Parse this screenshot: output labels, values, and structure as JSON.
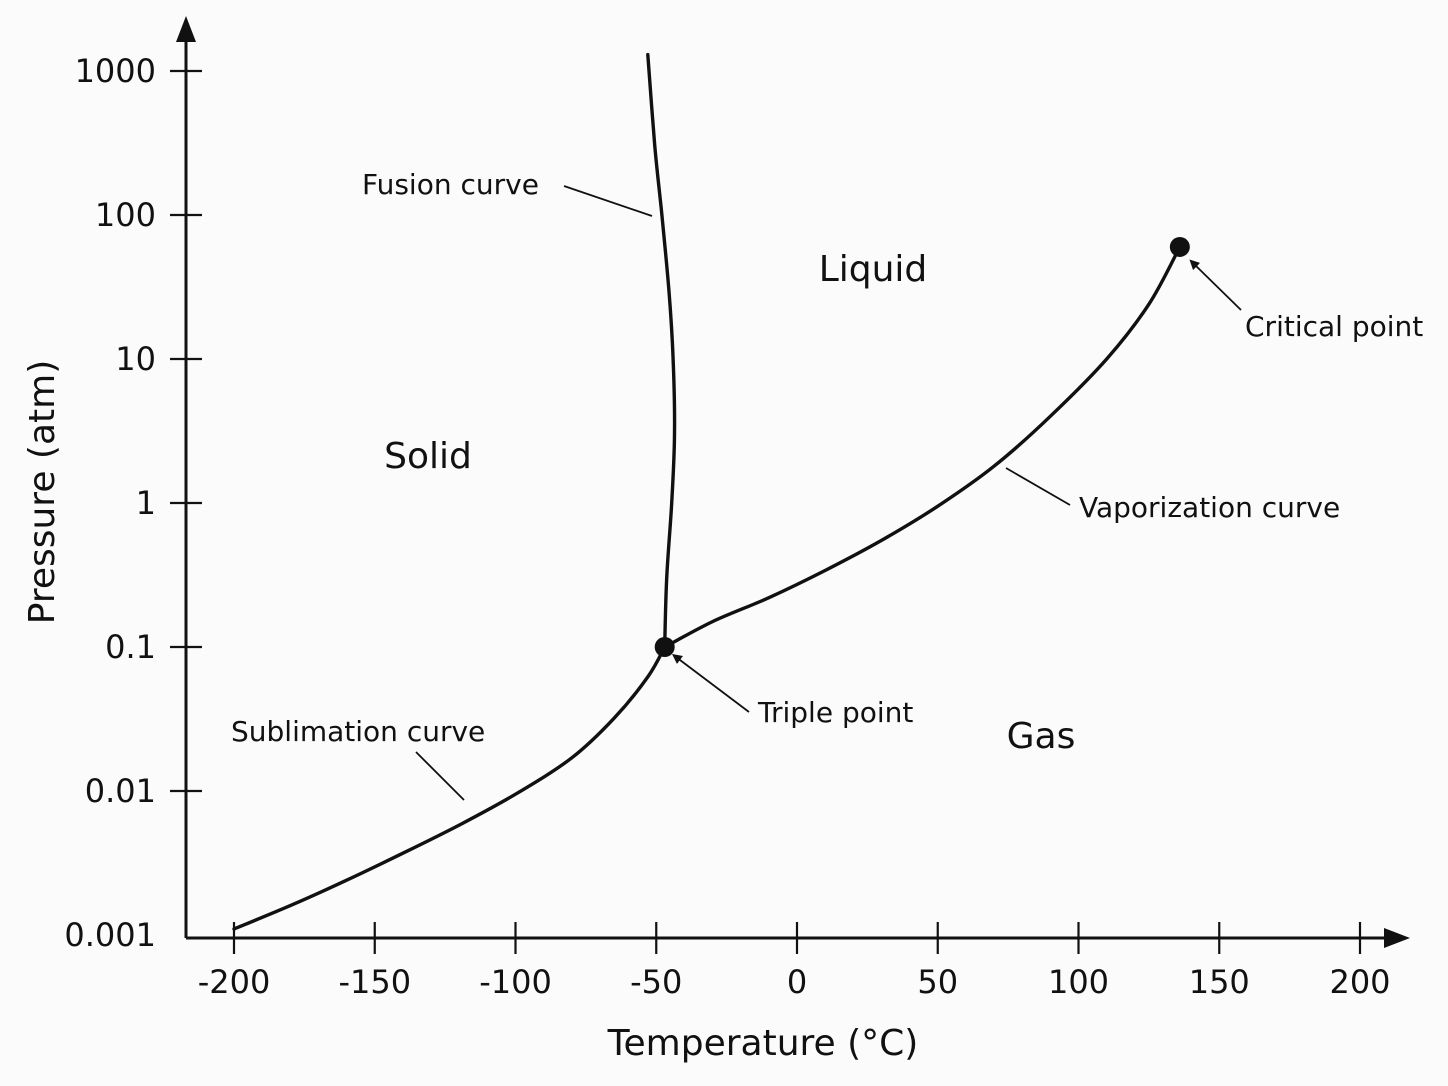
{
  "chart_data": {
    "type": "line",
    "title": "",
    "xlabel": "Temperature (°C)",
    "ylabel": "Pressure (atm)",
    "xlim": [
      -220,
      215
    ],
    "ylim": [
      0.001,
      1000
    ],
    "yscale": "log",
    "grid": false,
    "xticks": [
      -200,
      -150,
      -100,
      -50,
      0,
      50,
      100,
      150,
      200
    ],
    "xtick_labels": [
      "-200",
      "-150",
      "-100",
      "-50",
      "0",
      "50",
      "100",
      "150",
      "200"
    ],
    "yticks": [
      0.001,
      0.01,
      0.1,
      1,
      10,
      100,
      1000
    ],
    "ytick_labels": [
      "0.001",
      "0.01",
      "0.1",
      "1",
      "10",
      "100",
      "1000"
    ],
    "series": [
      {
        "name": "Sublimation curve",
        "x": [
          -200,
          -180,
          -160,
          -140,
          -120,
          -100,
          -80,
          -65,
          -53,
          -47
        ],
        "y": [
          0.0011,
          0.0016,
          0.0024,
          0.0037,
          0.0058,
          0.0095,
          0.017,
          0.032,
          0.062,
          0.1
        ]
      },
      {
        "name": "Fusion curve",
        "x": [
          -47,
          -46.3,
          -44.5,
          -43.5,
          -44,
          -45.5,
          -48,
          -50.5,
          -53
        ],
        "y": [
          0.1,
          0.3,
          1,
          3,
          10,
          30,
          100,
          300,
          1300
        ]
      },
      {
        "name": "Vaporization curve",
        "x": [
          -47,
          -30,
          -10,
          10,
          30,
          50,
          70,
          90,
          110,
          125,
          136
        ],
        "y": [
          0.1,
          0.15,
          0.22,
          0.34,
          0.55,
          0.95,
          1.8,
          4,
          10,
          24,
          60
        ]
      }
    ],
    "points": [
      {
        "name": "Triple point",
        "x": -47,
        "y": 0.1
      },
      {
        "name": "Critical point",
        "x": 136,
        "y": 60
      }
    ],
    "regions": [
      "Solid",
      "Liquid",
      "Gas"
    ]
  }
}
